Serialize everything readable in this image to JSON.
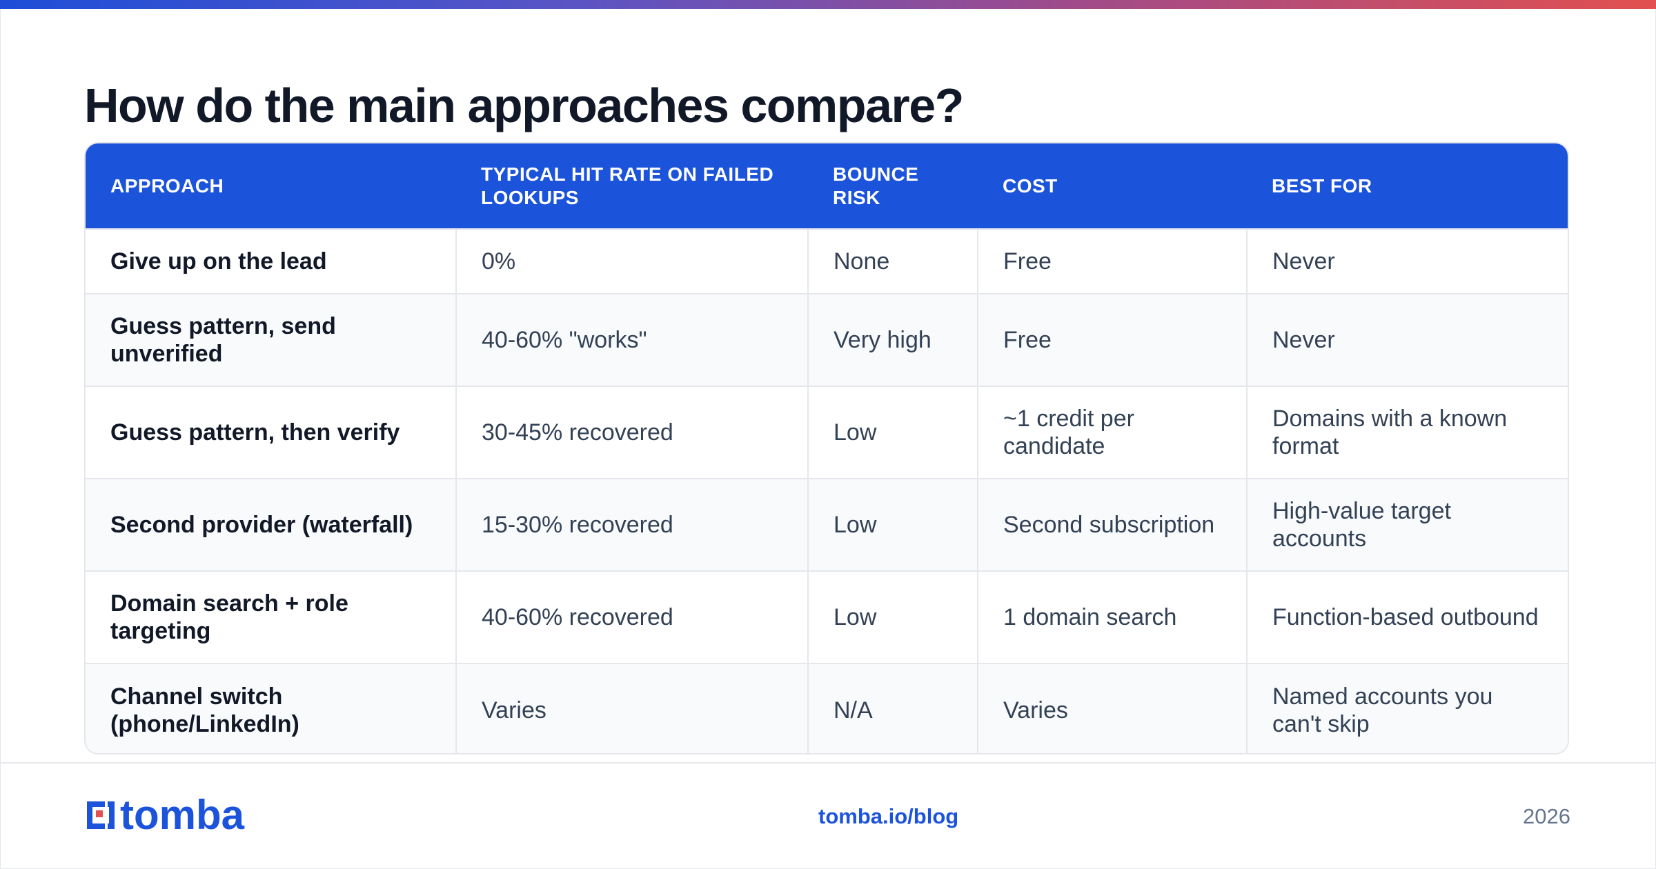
{
  "title": "How do the main approaches compare?",
  "table": {
    "headers": [
      "APPROACH",
      "TYPICAL HIT RATE ON FAILED LOOKUPS",
      "BOUNCE RISK",
      "COST",
      "BEST FOR"
    ],
    "rows": [
      [
        "Give up on the lead",
        "0%",
        "None",
        "Free",
        "Never"
      ],
      [
        "Guess pattern, send unverified",
        "40-60% \"works\"",
        "Very high",
        "Free",
        "Never"
      ],
      [
        "Guess pattern, then verify",
        "30-45% recovered",
        "Low",
        "~1 credit per candidate",
        "Domains with a known format"
      ],
      [
        "Second provider (waterfall)",
        "15-30% recovered",
        "Low",
        "Second subscription",
        "High-value target accounts"
      ],
      [
        "Domain search + role targeting",
        "40-60% recovered",
        "Low",
        "1 domain search",
        "Function-based outbound"
      ],
      [
        "Channel switch (phone/LinkedIn)",
        "Varies",
        "N/A",
        "Varies",
        "Named accounts you can't skip"
      ]
    ]
  },
  "footer": {
    "logo_text": "tomba",
    "logo_icon": "tomba-logo-icon",
    "url": "tomba.io/blog",
    "year": "2026"
  },
  "colors": {
    "brand_blue": "#1b53db",
    "gradient": [
      "#1d4ed8",
      "#5b54c4",
      "#a04b8a",
      "#e2504f"
    ],
    "logo_accent": "#e2504f"
  }
}
